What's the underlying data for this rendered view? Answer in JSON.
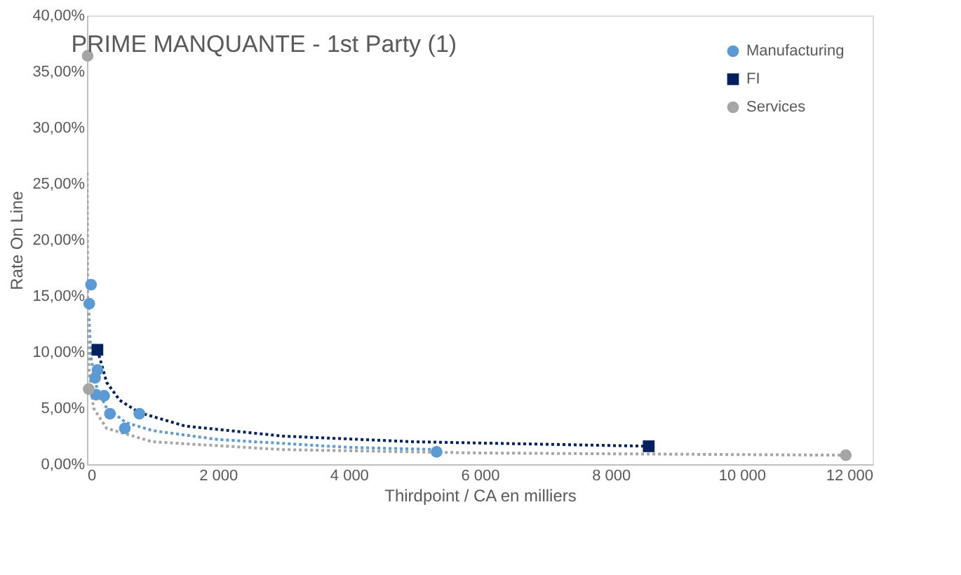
{
  "chart_data": {
    "type": "scatter",
    "title": "PRIME MANQUANTE - 1st Party (1)",
    "xlabel": "Thirdpoint / CA en milliers",
    "ylabel": "Rate On Line",
    "xlim": [
      0,
      12000
    ],
    "xticks": [
      0,
      {
        "value": 2000,
        "label": "2 000"
      },
      {
        "value": 4000,
        "label": "4 000"
      },
      {
        "value": 6000,
        "label": "6 000"
      },
      {
        "value": 8000,
        "label": "8 000"
      },
      {
        "value": 10000,
        "label": "10 000"
      },
      {
        "value": 12000,
        "label": "12 000"
      }
    ],
    "ylim": [
      0,
      40
    ],
    "yticks": [
      {
        "value": 0,
        "label": "0,00%"
      },
      {
        "value": 5,
        "label": "5,00%"
      },
      {
        "value": 10,
        "label": "10,00%"
      },
      {
        "value": 15,
        "label": "15,00%"
      },
      {
        "value": 20,
        "label": "20,00%"
      },
      {
        "value": 25,
        "label": "25,00%"
      },
      {
        "value": 30,
        "label": "30,00%"
      },
      {
        "value": 35,
        "label": "35,00%"
      },
      {
        "value": 40,
        "label": "40,00%"
      }
    ],
    "grid": false,
    "legend": "top right",
    "series": [
      {
        "type": "line",
        "color": "#5b9bd5",
        "marker": "none",
        "line_style": "dotted",
        "x": [
          20,
          60,
          150,
          300,
          600,
          1000,
          2000,
          4000,
          5400
        ],
        "values": [
          14.5,
          9.5,
          6.8,
          5.0,
          3.7,
          3.0,
          2.2,
          1.5,
          1.3
        ]
      },
      {
        "type": "line",
        "color": "#002060",
        "marker": "none",
        "line_style": "dotted",
        "x": [
          160,
          300,
          500,
          800,
          1500,
          3000,
          5000,
          8600
        ],
        "values": [
          10.2,
          7.3,
          5.7,
          4.6,
          3.4,
          2.5,
          2.0,
          1.6
        ]
      },
      {
        "type": "line",
        "color": "#a5a5a5",
        "marker": "none",
        "line_style": "dotted",
        "x": [
          3,
          10,
          30,
          100,
          300,
          1000,
          3000,
          6000,
          11600
        ],
        "values": [
          26,
          15,
          8.5,
          5.0,
          3.2,
          2.0,
          1.3,
          1.0,
          0.8
        ]
      },
      {
        "name": "Manufacturing",
        "color": "#5b9bd5",
        "marker": "circle",
        "x": [
          62,
          35,
          160,
          124,
          138,
          262,
          351,
          578,
          800,
          5340
        ],
        "values": [
          16.0,
          14.3,
          8.4,
          7.7,
          6.2,
          6.1,
          4.5,
          3.2,
          4.5,
          1.1
        ]
      },
      {
        "name": "FI",
        "color": "#002060",
        "marker": "square",
        "x": [
          159,
          8580
        ],
        "values": [
          10.2,
          1.6
        ]
      },
      {
        "name": "Services",
        "color": "#a5a5a5",
        "marker": "circle",
        "x": [
          10,
          27,
          11590
        ],
        "values": [
          36.4,
          6.7,
          0.8
        ]
      }
    ]
  }
}
